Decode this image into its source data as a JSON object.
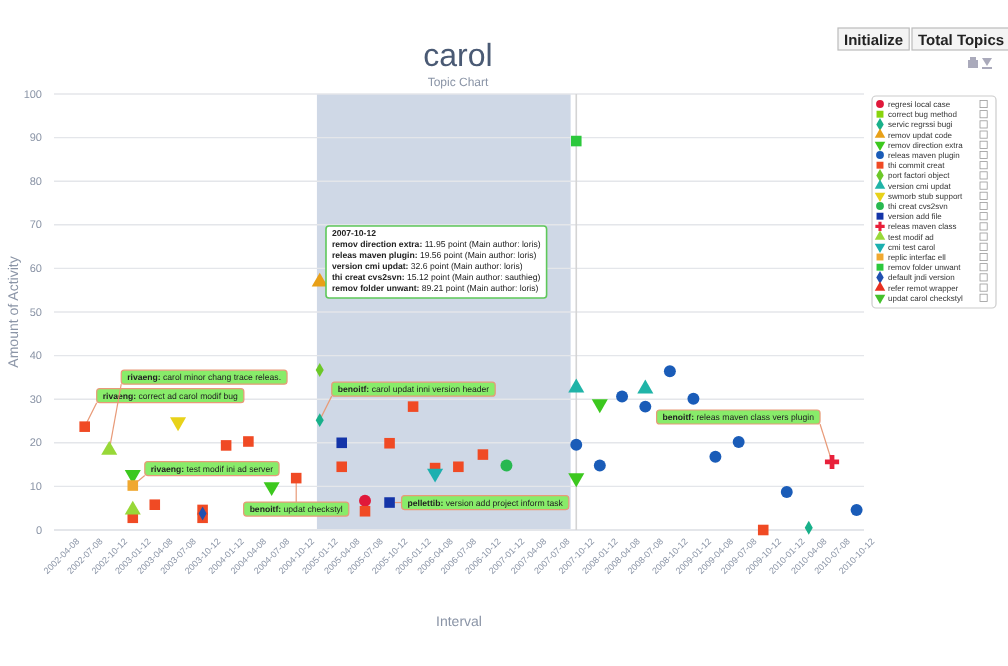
{
  "chart_data": {
    "type": "scatter",
    "title": "carol",
    "subtitle": "Topic Chart",
    "xlabel": "Interval",
    "ylabel": "Amount of Activity",
    "xlim": [
      "2002-03-10",
      "2010-11-10"
    ],
    "xticks": [
      "2002-04-08",
      "2002-07-08",
      "2002-10-12",
      "2003-01-12",
      "2003-04-08",
      "2003-07-08",
      "2003-10-12",
      "2004-01-12",
      "2004-04-08",
      "2004-07-08",
      "2004-10-12",
      "2005-01-12",
      "2005-04-08",
      "2005-07-08",
      "2005-10-12",
      "2006-01-12",
      "2006-04-08",
      "2006-07-08",
      "2006-10-12",
      "2007-01-12",
      "2007-04-08",
      "2007-07-08",
      "2007-10-12",
      "2008-01-12",
      "2008-04-08",
      "2008-07-08",
      "2008-10-12",
      "2009-01-12",
      "2009-04-08",
      "2009-07-08",
      "2009-10-12",
      "2010-01-12",
      "2010-04-08",
      "2010-07-08",
      "2010-10-12"
    ],
    "ylim": [
      0,
      100
    ],
    "yticks": [
      0,
      10,
      20,
      30,
      40,
      50,
      60,
      70,
      80,
      90,
      100
    ],
    "grid": "y",
    "legend": "top right",
    "bands": [
      {
        "axis": "x",
        "from": "2005-01-01",
        "to": "2007-09-20",
        "color": "#cfd8e6"
      }
    ],
    "ref_lines": [
      {
        "axis": "x",
        "value": "2007-10-12",
        "color": "#d4d4d4"
      }
    ],
    "series": [
      {
        "name": "regresi local case",
        "color": "#e0183a",
        "marker": "circle",
        "x": [
          "2005-07-08"
        ],
        "values": [
          6.7
        ]
      },
      {
        "name": "correct bug method",
        "color": "#88d40c",
        "marker": "square"
      },
      {
        "name": "servic regrssi bugi",
        "color": "#18b08a",
        "marker": "diamond",
        "x": [
          "2005-01-12",
          "2010-04-08"
        ],
        "values": [
          25.2,
          0.5
        ]
      },
      {
        "name": "remov updat code",
        "color": "#e8a018",
        "marker": "triangle",
        "x": [
          "2005-01-12"
        ],
        "values": [
          56.9
        ]
      },
      {
        "name": "remov direction extra",
        "color": "#3cc81e",
        "marker": "triangle-down",
        "x": [
          "2003-01-12",
          "2004-07-08",
          "2007-10-12",
          "2008-01-12"
        ],
        "values": [
          12.7,
          9.9,
          11.95,
          28.9
        ]
      },
      {
        "name": "releas maven plugin",
        "color": "#1a5cb8",
        "marker": "circle",
        "x": [
          "2007-10-12",
          "2008-01-12",
          "2008-04-08",
          "2008-07-08",
          "2008-10-12",
          "2009-01-12",
          "2009-04-08",
          "2009-07-08",
          "2010-01-12",
          "2010-10-12"
        ],
        "values": [
          19.56,
          14.8,
          30.6,
          28.3,
          36.4,
          30.1,
          16.8,
          20.2,
          8.7,
          4.6
        ]
      },
      {
        "name": "thi commit creat",
        "color": "#f04a24",
        "marker": "square",
        "x": [
          "2002-07-08",
          "2003-01-12",
          "2003-04-08",
          "2003-10-12",
          "2003-10-12",
          "2004-01-12",
          "2004-04-08",
          "2004-10-12",
          "2005-04-08",
          "2005-07-08",
          "2005-10-12",
          "2006-01-12",
          "2006-04-08",
          "2006-07-08",
          "2006-10-12",
          "2009-10-12"
        ],
        "values": [
          23.7,
          2.8,
          5.8,
          4.6,
          2.8,
          19.4,
          20.3,
          11.9,
          14.5,
          4.3,
          19.9,
          28.3,
          14.2,
          14.5,
          17.3,
          0
        ]
      },
      {
        "name": "port factori object",
        "color": "#6cc828",
        "marker": "diamond",
        "x": [
          "2005-01-12"
        ],
        "values": [
          36.7
        ]
      },
      {
        "name": "version cmi updat",
        "color": "#20b4a8",
        "marker": "triangle",
        "x": [
          "2007-10-12",
          "2008-07-08"
        ],
        "values": [
          32.6,
          32.4
        ]
      },
      {
        "name": "swmorb stub support",
        "color": "#e8d21a",
        "marker": "triangle-down",
        "x": [
          "2003-07-08"
        ],
        "values": [
          24.8
        ]
      },
      {
        "name": "thi creat cvs2svn",
        "color": "#28b850",
        "marker": "circle",
        "x": [
          "2007-01-12"
        ],
        "values": [
          14.8
        ]
      },
      {
        "name": "version add file",
        "color": "#1434a8",
        "marker": "square",
        "x": [
          "2005-04-08",
          "2005-10-12"
        ],
        "values": [
          20.0,
          6.3
        ]
      },
      {
        "name": "releas maven class",
        "color": "#e8203a",
        "marker": "cross",
        "x": [
          "2010-07-08"
        ],
        "values": [
          15.6
        ]
      },
      {
        "name": "test modif ad",
        "color": "#98d838",
        "marker": "triangle",
        "x": [
          "2002-10-12",
          "2003-01-12"
        ],
        "values": [
          18.3,
          4.6
        ]
      },
      {
        "name": "cmi test carol",
        "color": "#1cb0b0",
        "marker": "triangle-down",
        "x": [
          "2006-04-08"
        ],
        "values": [
          13.0
        ]
      },
      {
        "name": "replic interfac ell",
        "color": "#f0a830",
        "marker": "square",
        "x": [
          "2003-01-12"
        ],
        "values": [
          10.2
        ]
      },
      {
        "name": "remov folder unwant",
        "color": "#2cc83c",
        "marker": "square",
        "x": [
          "2007-10-12"
        ],
        "values": [
          89.21
        ]
      },
      {
        "name": "default jndi version",
        "color": "#2050b0",
        "marker": "diamond",
        "x": [
          "2003-10-12"
        ],
        "values": [
          3.8
        ]
      },
      {
        "name": "refer remot wrapper",
        "color": "#e83020",
        "marker": "triangle"
      },
      {
        "name": "updat carol checkstyl",
        "color": "#44c02c",
        "marker": "triangle-down"
      }
    ],
    "annotations": [
      "Initialize",
      "Total Topics",
      {
        "text": "rivaeng: correct ad carol modif bug",
        "x": "2002-07-08",
        "y": 23.7
      },
      {
        "text": "rivaeng: carol minor chang trace releas.",
        "x": "2002-10-12",
        "y": 18.3
      },
      {
        "text": "rivaeng: test modif ini ad server",
        "x": "2003-01-12",
        "y": 10.2
      },
      {
        "text": "benoitf: carol updat inni version header",
        "x": "2005-01-12",
        "y": 25.2
      },
      {
        "text": "benoitf: updat checkstyl",
        "x": "2004-10-12",
        "y": 11.9
      },
      {
        "text": "pellettib: version add project inform task",
        "x": "2005-10-12",
        "y": 6.3
      },
      {
        "text": "benoitf: releas maven class vers plugin",
        "x": "2010-07-08",
        "y": 15.6
      },
      "2007-10-12",
      "remov direction extra: 11.95 point (Main author: loris)",
      "releas maven plugin: 19.56 point (Main author: loris)",
      "version cmi updat: 32.6 point (Main author: loris)",
      "thi creat cvs2svn: 15.12 point (Main author: sauthieg)",
      "remov folder unwant: 89.21 point (Main author: loris)"
    ]
  }
}
